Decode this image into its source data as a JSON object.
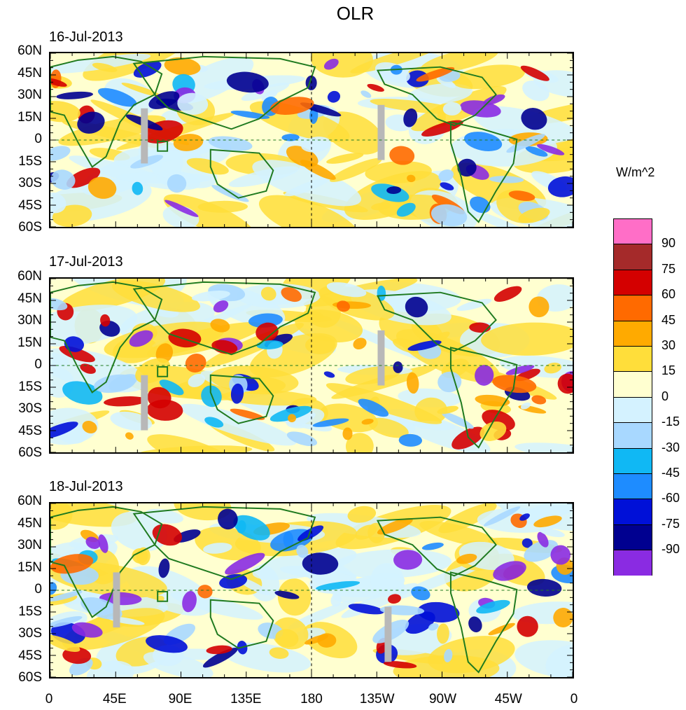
{
  "title": "OLR",
  "panels": [
    {
      "date": "16-Jul-2013"
    },
    {
      "date": "17-Jul-2013"
    },
    {
      "date": "18-Jul-2013"
    }
  ],
  "lat_labels": [
    "60N",
    "45N",
    "30N",
    "15N",
    "0",
    "15S",
    "30S",
    "45S",
    "60S"
  ],
  "lon_labels": [
    "0",
    "45E",
    "90E",
    "135E",
    "180",
    "135W",
    "90W",
    "45W",
    "0"
  ],
  "colorbar": {
    "units": "W/m^2",
    "levels": [
      "90",
      "75",
      "60",
      "45",
      "30",
      "15",
      "0",
      "-15",
      "-30",
      "-45",
      "-60",
      "-75",
      "-90"
    ],
    "colors": [
      "#ff6ec7",
      "#a52a2a",
      "#d40000",
      "#ff6a00",
      "#ffaa00",
      "#ffde3a",
      "#ffffd0",
      "#d4f2ff",
      "#a8d8ff",
      "#10b8f4",
      "#1e8cff",
      "#0010d8",
      "#000090",
      "#8a2be2"
    ]
  },
  "colors": {
    "coastline": "#1f7a1f",
    "missing": "#b8b8b8"
  }
}
